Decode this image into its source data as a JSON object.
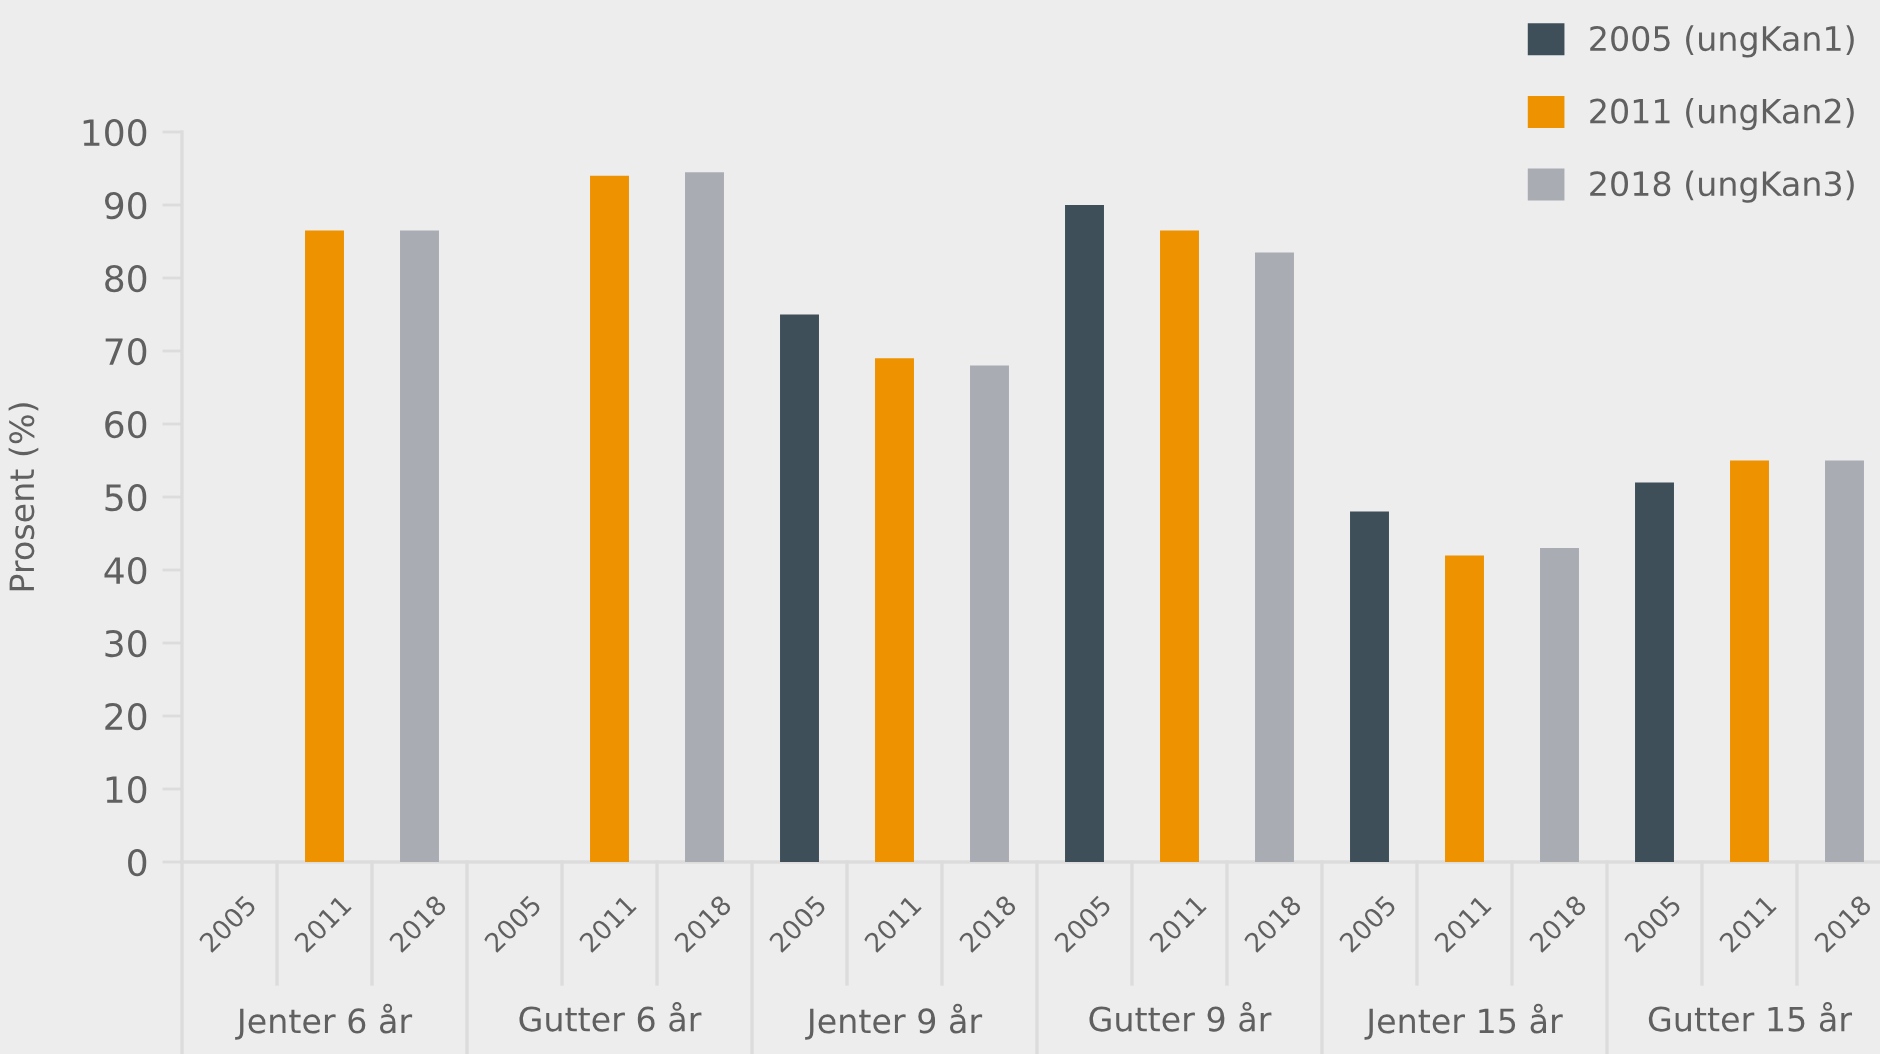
{
  "chart_data": {
    "type": "bar",
    "ylabel": "Prosent (%)",
    "categories": [
      "2005",
      "2011",
      "2018",
      "2005",
      "2011",
      "2018",
      "2005",
      "2011",
      "2018",
      "2005",
      "2011",
      "2018",
      "2005",
      "2011",
      "2018",
      "2005",
      "2011",
      "2018"
    ],
    "annotations": [
      "Jenter 6 år",
      "Gutter 6 år",
      "Jenter 9 år",
      "Gutter 9 år",
      "Jenter 15 år",
      "Gutter 15 år"
    ],
    "series": [
      {
        "name": "2005 (ungKan1)",
        "color": "#3e4f5a",
        "values": [
          null,
          null,
          null,
          null,
          null,
          null,
          75,
          null,
          null,
          90,
          null,
          null,
          48,
          null,
          null,
          52,
          null,
          null
        ]
      },
      {
        "name": "2011 (ungKan2)",
        "color": "#ee9200",
        "values": [
          null,
          86.5,
          null,
          null,
          94,
          null,
          null,
          69,
          null,
          null,
          86.5,
          null,
          null,
          42,
          null,
          null,
          55,
          null
        ]
      },
      {
        "name": "2018 (ungKan3)",
        "color": "#a9acb3",
        "values": [
          null,
          null,
          86.5,
          null,
          null,
          94.5,
          null,
          null,
          68,
          null,
          null,
          83.5,
          null,
          null,
          43,
          null,
          null,
          55
        ]
      }
    ],
    "ylim": [
      0,
      100
    ],
    "yticks": [
      0,
      10,
      20,
      30,
      40,
      50,
      60,
      70,
      80,
      90,
      100
    ],
    "grid": false,
    "legend": "top right"
  }
}
